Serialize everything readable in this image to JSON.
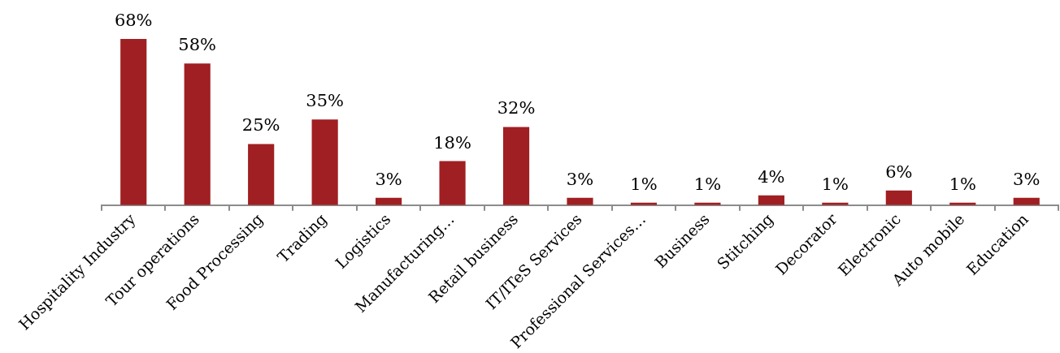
{
  "chart_data": {
    "type": "bar",
    "categories": [
      "Hospitality Industry",
      "Tour operations",
      "Food Processing",
      "Trading",
      "Logistics",
      "Manufacturing…",
      "Retail business",
      "IT/ITeS Services",
      "Professional Services…",
      "Business",
      "Stitching",
      "Decorator",
      "Electronic",
      "Auto mobile",
      "Education"
    ],
    "values": [
      68,
      58,
      25,
      35,
      3,
      18,
      32,
      3,
      1,
      1,
      4,
      1,
      6,
      1,
      3
    ],
    "value_labels": [
      "68%",
      "58%",
      "25%",
      "35%",
      "3%",
      "18%",
      "32%",
      "3%",
      "1%",
      "1%",
      "4%",
      "1%",
      "6%",
      "1%",
      "3%"
    ],
    "color": "#a01f22",
    "tick_labels": "x"
  }
}
